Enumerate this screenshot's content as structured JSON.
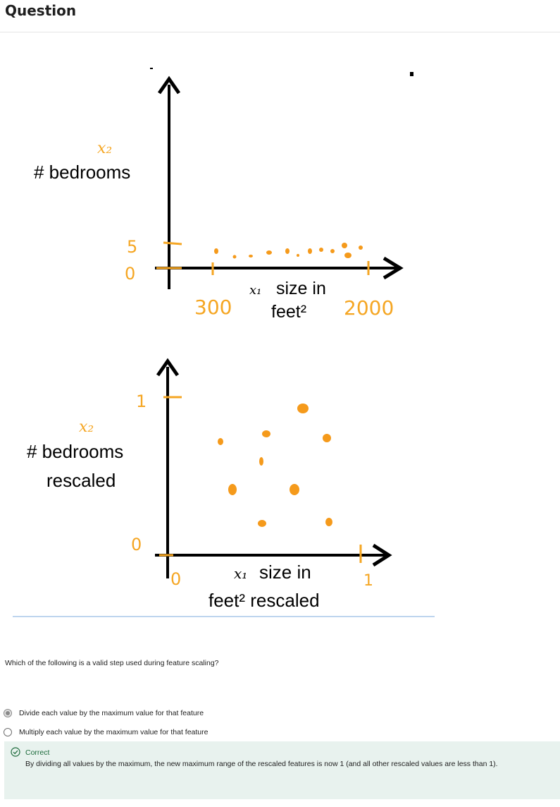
{
  "header": {
    "title": "Question"
  },
  "figure": {
    "top_plot": {
      "y_var": "x₂",
      "y_label": "# bedrooms",
      "y_max_tick": "5",
      "y_min_tick": "0",
      "x_min_tick": "300",
      "x_max_tick": "2000",
      "x_var": "x₁",
      "x_label_line1": "size in",
      "x_label_line2": "feet²"
    },
    "bottom_plot": {
      "y_var": "x₂",
      "y_label_line1": "# bedrooms",
      "y_label_line2": "rescaled",
      "y_max_tick": "1",
      "y_min_tick": "0",
      "x_min_tick": "0",
      "x_max_tick": "1",
      "x_var": "x₁",
      "x_label_line1": "size in",
      "x_label_line2": "feet² rescaled"
    },
    "colors": {
      "axis": "#000000",
      "ink": "#f5a623",
      "point": "#f59a1b"
    }
  },
  "question": {
    "text": "Which of the following is a valid step used during feature scaling?"
  },
  "options": [
    {
      "label": "Divide each value by the maximum value for that feature",
      "selected": true
    },
    {
      "label": "Multiply each value by the maximum value for that feature",
      "selected": false
    }
  ],
  "feedback": {
    "status": "Correct",
    "icon": "check-circle-icon",
    "text": "By dividing all values by the maximum, the new maximum range of the rescaled features is now 1 (and all other rescaled values are less than 1)."
  }
}
